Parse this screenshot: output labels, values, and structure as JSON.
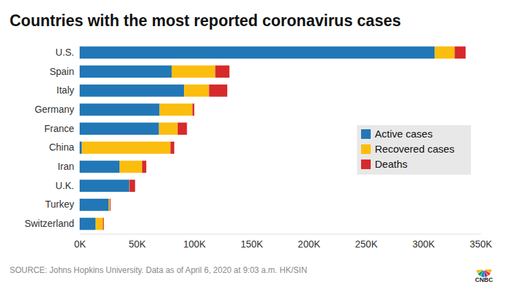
{
  "chart_data": {
    "type": "bar",
    "orientation": "horizontal",
    "stacked": true,
    "title": "Countries with the most reported coronavirus cases",
    "annotations": [
      "SOURCE: Johns Hopkins University. Data as of April 6, 2020 at 9:03 a.m. HK/SIN",
      "CNBC"
    ],
    "categories": [
      "U.S.",
      "Spain",
      "Italy",
      "Germany",
      "France",
      "China",
      "Iran",
      "U.K.",
      "Turkey",
      "Switzerland"
    ],
    "series": [
      {
        "name": "Active cases",
        "color": "#2277b6",
        "values": [
          310000,
          80300,
          91200,
          69800,
          69300,
          2000,
          34900,
          43300,
          25500,
          14000
        ]
      },
      {
        "name": "Recovered cases",
        "color": "#fbbd0e",
        "values": [
          17400,
          38100,
          21800,
          28700,
          16300,
          77300,
          19700,
          200,
          1000,
          6400
        ]
      },
      {
        "name": "Deaths",
        "color": "#d72a2b",
        "values": [
          9600,
          12400,
          15900,
          1600,
          8100,
          3300,
          3600,
          4900,
          600,
          700
        ]
      }
    ],
    "xlim": [
      0,
      350000
    ],
    "xticks": [
      {
        "value": 0,
        "label": "0K"
      },
      {
        "value": 50000,
        "label": "50K"
      },
      {
        "value": 100000,
        "label": "100K"
      },
      {
        "value": 150000,
        "label": "150K"
      },
      {
        "value": 200000,
        "label": "200K"
      },
      {
        "value": 250000,
        "label": "250K"
      },
      {
        "value": 300000,
        "label": "300K"
      },
      {
        "value": 350000,
        "label": "350K"
      }
    ],
    "grid": false,
    "legend": "right"
  }
}
